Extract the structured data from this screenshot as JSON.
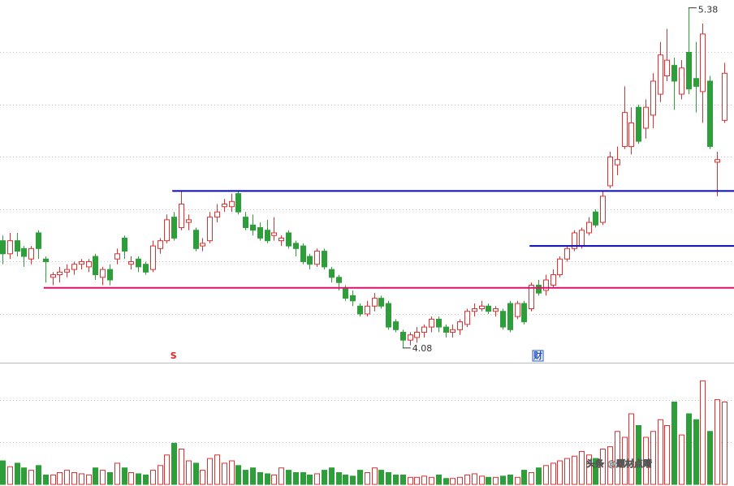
{
  "chart_data": {
    "type": "candlestick",
    "ylim": [
      4.03,
      5.41
    ],
    "grid_levels": [
      5.21,
      5.01,
      4.81,
      4.61,
      4.41,
      4.21
    ],
    "up_color": "#e03030",
    "down_color": "#2e9e3a",
    "candles": [
      [
        4.49,
        4.44,
        4.51,
        4.4
      ],
      [
        4.44,
        4.49,
        4.52,
        4.42
      ],
      [
        4.49,
        4.45,
        4.52,
        4.43
      ],
      [
        4.46,
        4.43,
        4.47,
        4.39
      ],
      [
        4.42,
        4.46,
        4.47,
        4.4
      ],
      [
        4.52,
        4.46,
        4.53,
        4.42
      ],
      [
        4.42,
        4.41,
        4.43,
        4.33
      ],
      [
        4.35,
        4.36,
        4.37,
        4.32
      ],
      [
        4.36,
        4.37,
        4.39,
        4.33
      ],
      [
        4.37,
        4.38,
        4.4,
        4.35
      ],
      [
        4.38,
        4.4,
        4.41,
        4.36
      ],
      [
        4.4,
        4.41,
        4.42,
        4.38
      ],
      [
        4.39,
        4.41,
        4.42,
        4.37
      ],
      [
        4.43,
        4.36,
        4.44,
        4.34
      ],
      [
        4.35,
        4.38,
        4.39,
        4.32
      ],
      [
        4.38,
        4.34,
        4.4,
        4.32
      ],
      [
        4.42,
        4.44,
        4.46,
        4.4
      ],
      [
        4.5,
        4.45,
        4.51,
        4.42
      ],
      [
        4.4,
        4.41,
        4.43,
        4.38
      ],
      [
        4.42,
        4.39,
        4.43,
        4.37
      ],
      [
        4.4,
        4.37,
        4.41,
        4.36
      ],
      [
        4.38,
        4.47,
        4.49,
        4.37
      ],
      [
        4.46,
        4.49,
        4.5,
        4.44
      ],
      [
        4.49,
        4.57,
        4.59,
        4.48
      ],
      [
        4.58,
        4.5,
        4.6,
        4.49
      ],
      [
        4.54,
        4.63,
        4.68,
        4.53
      ],
      [
        4.56,
        4.57,
        4.59,
        4.53
      ],
      [
        4.53,
        4.46,
        4.54,
        4.45
      ],
      [
        4.47,
        4.48,
        4.5,
        4.45
      ],
      [
        4.49,
        4.58,
        4.6,
        4.48
      ],
      [
        4.58,
        4.6,
        4.63,
        4.56
      ],
      [
        4.62,
        4.63,
        4.65,
        4.6
      ],
      [
        4.62,
        4.64,
        4.67,
        4.6
      ],
      [
        4.67,
        4.6,
        4.68,
        4.59
      ],
      [
        4.58,
        4.54,
        4.6,
        4.53
      ],
      [
        4.55,
        4.53,
        4.59,
        4.51
      ],
      [
        4.54,
        4.5,
        4.56,
        4.49
      ],
      [
        4.53,
        4.49,
        4.57,
        4.48
      ],
      [
        4.51,
        4.52,
        4.58,
        4.49
      ],
      [
        4.49,
        4.5,
        4.51,
        4.47
      ],
      [
        4.52,
        4.47,
        4.53,
        4.46
      ],
      [
        4.48,
        4.46,
        4.49,
        4.43
      ],
      [
        4.47,
        4.41,
        4.48,
        4.4
      ],
      [
        4.43,
        4.4,
        4.44,
        4.38
      ],
      [
        4.4,
        4.45,
        4.46,
        4.39
      ],
      [
        4.45,
        4.39,
        4.46,
        4.38
      ],
      [
        4.38,
        4.35,
        4.39,
        4.33
      ],
      [
        4.35,
        4.33,
        4.36,
        4.3
      ],
      [
        4.31,
        4.27,
        4.32,
        4.26
      ],
      [
        4.28,
        4.26,
        4.3,
        4.24
      ],
      [
        4.24,
        4.21,
        4.25,
        4.2
      ],
      [
        4.21,
        4.24,
        4.26,
        4.2
      ],
      [
        4.24,
        4.27,
        4.29,
        4.22
      ],
      [
        4.27,
        4.24,
        4.28,
        4.23
      ],
      [
        4.25,
        4.16,
        4.26,
        4.15
      ],
      [
        4.18,
        4.15,
        4.19,
        4.14
      ],
      [
        4.14,
        4.11,
        4.15,
        4.08
      ],
      [
        4.11,
        4.13,
        4.14,
        4.09
      ],
      [
        4.12,
        4.14,
        4.16,
        4.1
      ],
      [
        4.14,
        4.16,
        4.17,
        4.12
      ],
      [
        4.16,
        4.19,
        4.2,
        4.14
      ],
      [
        4.19,
        4.16,
        4.2,
        4.14
      ],
      [
        4.16,
        4.14,
        4.17,
        4.12
      ],
      [
        4.14,
        4.15,
        4.17,
        4.12
      ],
      [
        4.15,
        4.18,
        4.19,
        4.13
      ],
      [
        4.17,
        4.22,
        4.23,
        4.16
      ],
      [
        4.22,
        4.23,
        4.25,
        4.2
      ],
      [
        4.23,
        4.24,
        4.26,
        4.22
      ],
      [
        4.24,
        4.22,
        4.25,
        4.21
      ],
      [
        4.22,
        4.23,
        4.24,
        4.2
      ],
      [
        4.22,
        4.16,
        4.23,
        4.15
      ],
      [
        4.25,
        4.15,
        4.26,
        4.14
      ],
      [
        4.2,
        4.25,
        4.26,
        4.19
      ],
      [
        4.25,
        4.18,
        4.26,
        4.17
      ],
      [
        4.23,
        4.32,
        4.33,
        4.22
      ],
      [
        4.32,
        4.29,
        4.34,
        4.28
      ],
      [
        4.3,
        4.34,
        4.36,
        4.28
      ],
      [
        4.32,
        4.36,
        4.38,
        4.31
      ],
      [
        4.36,
        4.42,
        4.43,
        4.35
      ],
      [
        4.42,
        4.46,
        4.47,
        4.41
      ],
      [
        4.46,
        4.52,
        4.53,
        4.45
      ],
      [
        4.47,
        4.53,
        4.54,
        4.46
      ],
      [
        4.52,
        4.56,
        4.58,
        4.51
      ],
      [
        4.6,
        4.55,
        4.61,
        4.54
      ],
      [
        4.56,
        4.66,
        4.68,
        4.55
      ],
      [
        4.7,
        4.81,
        4.83,
        4.69
      ],
      [
        4.78,
        4.8,
        4.85,
        4.74
      ],
      [
        4.85,
        4.98,
        5.08,
        4.84
      ],
      [
        4.85,
        4.94,
        5.0,
        4.82
      ],
      [
        5.0,
        4.87,
        5.01,
        4.86
      ],
      [
        4.92,
        5.0,
        5.03,
        4.88
      ],
      [
        4.97,
        5.1,
        5.13,
        4.92
      ],
      [
        5.05,
        5.2,
        5.25,
        5.02
      ],
      [
        5.12,
        5.18,
        5.3,
        5.1
      ],
      [
        5.16,
        5.1,
        5.19,
        4.99
      ],
      [
        5.05,
        5.15,
        5.18,
        5.03
      ],
      [
        5.21,
        5.07,
        5.38,
        5.05
      ],
      [
        5.11,
        5.08,
        5.25,
        4.98
      ],
      [
        5.06,
        5.28,
        5.32,
        4.94
      ],
      [
        5.1,
        4.85,
        5.12,
        4.84
      ],
      [
        4.79,
        4.8,
        4.83,
        4.66
      ],
      [
        4.95,
        5.13,
        5.17,
        4.94
      ]
    ],
    "volume": [
      20,
      15,
      18,
      14,
      12,
      16,
      8,
      8,
      10,
      12,
      10,
      9,
      8,
      14,
      12,
      10,
      18,
      14,
      10,
      9,
      8,
      12,
      16,
      25,
      35,
      30,
      20,
      18,
      12,
      22,
      25,
      18,
      20,
      16,
      12,
      14,
      10,
      9,
      8,
      14,
      12,
      10,
      10,
      8,
      9,
      12,
      14,
      10,
      8,
      7,
      12,
      10,
      14,
      12,
      10,
      8,
      8,
      6,
      6,
      7,
      6,
      8,
      5,
      5,
      6,
      8,
      9,
      7,
      6,
      6,
      7,
      8,
      6,
      12,
      10,
      14,
      16,
      18,
      20,
      22,
      24,
      28,
      25,
      22,
      30,
      32,
      45,
      40,
      60,
      50,
      40,
      45,
      55,
      50,
      70,
      42,
      60,
      55,
      88,
      45,
      72,
      70
    ],
    "volume_lim": [
      0,
      100
    ],
    "volume_grid": [
      36,
      72
    ],
    "levels": [
      {
        "value": 4.68,
        "from": 24,
        "color": "#0a0ab4"
      },
      {
        "value": 4.47,
        "from": 74,
        "color": "#0a0ab4"
      },
      {
        "value": 4.31,
        "from": 6,
        "color": "#e0106a"
      }
    ],
    "annotations": [
      {
        "value": 5.38,
        "index": 96
      },
      {
        "value": 4.08,
        "index": 56
      }
    ],
    "markers": [
      {
        "label": "S",
        "index": 24,
        "color": "#e02020"
      },
      {
        "label": "财",
        "index": 75,
        "color": "#2050c0"
      }
    ],
    "watermark": "头条 @题材点睛"
  }
}
